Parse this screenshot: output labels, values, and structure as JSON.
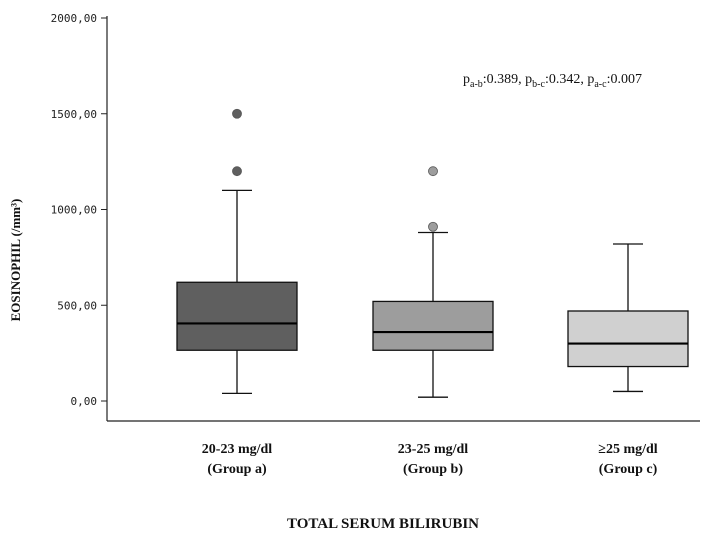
{
  "chart_data": {
    "type": "box",
    "ylabel": "EOSINOPHIL (/mm³)",
    "xlabel": "TOTAL SERUM BILIRUBIN",
    "ylim": [
      0,
      2000
    ],
    "yticks": [
      0,
      500,
      1000,
      1500,
      2000
    ],
    "ytick_labels": [
      "0,00",
      "500,00",
      "1000,00",
      "1500,00",
      "2000,00"
    ],
    "grid": false,
    "categories": [
      {
        "line1": "20-23 mg/dl",
        "line2": "(Group a)"
      },
      {
        "line1": "23-25 mg/dl",
        "line2": "(Group b)"
      },
      {
        "line1": "≥25 mg/dl",
        "line2": "(Group c)"
      }
    ],
    "boxes": [
      {
        "min": 40,
        "q1": 265,
        "median": 405,
        "q3": 620,
        "max": 1100,
        "outliers": [
          1200,
          1500
        ],
        "color": "#5f5f5f"
      },
      {
        "min": 20,
        "q1": 265,
        "median": 360,
        "q3": 520,
        "max": 880,
        "outliers": [
          910,
          1200
        ],
        "color": "#9d9d9d"
      },
      {
        "min": 50,
        "q1": 180,
        "median": 300,
        "q3": 470,
        "max": 820,
        "outliers": [],
        "color": "#d0d0d0"
      }
    ],
    "annotation": {
      "parts": [
        {
          "p": "p",
          "sub": "a-b",
          "val": ":0.389, "
        },
        {
          "p": "p",
          "sub": "b-c",
          "val": ":0.342, "
        },
        {
          "p": "p",
          "sub": "a-c",
          "val": ":0.007"
        }
      ]
    }
  }
}
